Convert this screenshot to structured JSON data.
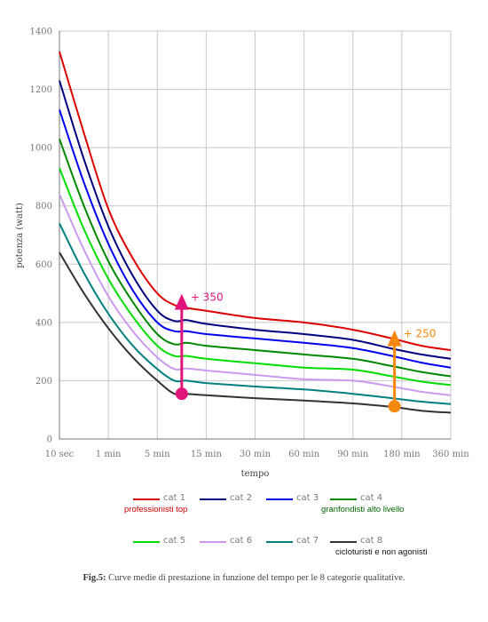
{
  "chart_data": {
    "type": "line",
    "xlabel": "tempo",
    "ylabel": "potenza (watt)",
    "ylim": [
      0,
      1400
    ],
    "yticks": [
      0,
      200,
      400,
      600,
      800,
      1000,
      1200,
      1400
    ],
    "categories": [
      "10 sec",
      "1 min",
      "5 min",
      "15 min",
      "30 min",
      "60 min",
      "90 min",
      "180 min",
      "360 min"
    ],
    "grid": true,
    "legend_position": "bottom",
    "x": [
      0,
      0.5,
      1,
      1.5,
      2,
      2.35,
      2.6,
      3,
      4,
      5,
      6,
      6.8,
      7.4,
      8
    ],
    "series": [
      {
        "name": "cat 1",
        "color": "#dd0000",
        "values": [
          1330,
          1050,
          790,
          620,
          500,
          460,
          450,
          440,
          415,
          400,
          375,
          345,
          320,
          305
        ]
      },
      {
        "name": "cat 2",
        "color": "#000080",
        "values": [
          1230,
          960,
          730,
          560,
          440,
          405,
          408,
          395,
          375,
          360,
          340,
          310,
          290,
          275
        ]
      },
      {
        "name": "cat 3",
        "color": "#0000ee",
        "values": [
          1130,
          880,
          670,
          510,
          400,
          370,
          370,
          360,
          345,
          330,
          312,
          285,
          262,
          245
        ]
      },
      {
        "name": "cat 4",
        "color": "#008800",
        "values": [
          1030,
          800,
          610,
          470,
          360,
          325,
          330,
          320,
          305,
          290,
          275,
          250,
          230,
          215
        ]
      },
      {
        "name": "cat 5",
        "color": "#00dd00",
        "values": [
          930,
          720,
          550,
          420,
          320,
          285,
          285,
          275,
          260,
          245,
          238,
          215,
          197,
          185
        ]
      },
      {
        "name": "cat 6",
        "color": "#cc99ee",
        "values": [
          840,
          650,
          490,
          370,
          280,
          240,
          242,
          235,
          220,
          205,
          200,
          180,
          162,
          150
        ]
      },
      {
        "name": "cat 7",
        "color": "#008080",
        "values": [
          740,
          570,
          430,
          320,
          240,
          200,
          200,
          192,
          180,
          170,
          155,
          140,
          128,
          120
        ]
      },
      {
        "name": "cat 8",
        "color": "#333333",
        "values": [
          640,
          500,
          380,
          280,
          200,
          155,
          155,
          150,
          140,
          132,
          122,
          110,
          97,
          90
        ]
      }
    ],
    "annotations": [
      {
        "label": "+ 350",
        "color": "#e0157a",
        "x": 2.5,
        "from": 155,
        "to": 480
      },
      {
        "label": "+ 250",
        "color": "#f5890f",
        "x": 6.85,
        "from": 112,
        "to": 355
      }
    ],
    "notes": [
      {
        "text": "professionisti top",
        "color": "#cc0000"
      },
      {
        "text": "granfondisti alto livello",
        "color": "#006600"
      },
      {
        "text": "cicloturisti e non agonisti",
        "color": "#111111"
      }
    ]
  },
  "caption": {
    "prefix": "Fig.5:",
    "text": " Curve medie di prestazione in funzione del tempo per le 8 categorie qualitative."
  }
}
